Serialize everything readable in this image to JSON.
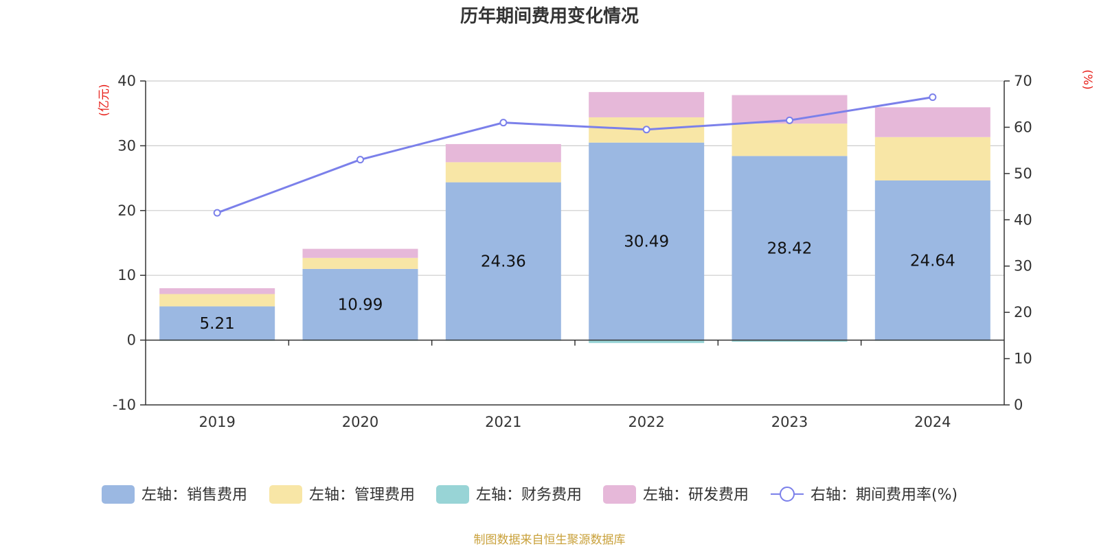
{
  "chart_data": {
    "type": "bar",
    "title": "历年期间费用变化情况",
    "categories": [
      "2019",
      "2020",
      "2021",
      "2022",
      "2023",
      "2024"
    ],
    "series": [
      {
        "name": "左轴：销售费用",
        "type": "bar",
        "axis": "left",
        "color": "#9bb8e2",
        "values": [
          5.21,
          10.99,
          24.36,
          30.49,
          28.42,
          24.64
        ]
      },
      {
        "name": "左轴：管理费用",
        "type": "bar",
        "axis": "left",
        "color": "#f8e6a6",
        "values": [
          1.9,
          1.7,
          3.1,
          3.9,
          5.0,
          6.7
        ]
      },
      {
        "name": "左轴：财务费用",
        "type": "bar",
        "axis": "left",
        "color": "#98d4d6",
        "values": [
          -0.1,
          -0.05,
          -0.05,
          -0.45,
          -0.25,
          -0.05
        ]
      },
      {
        "name": "左轴：研发费用",
        "type": "bar",
        "axis": "left",
        "color": "#e6b8d9",
        "values": [
          0.9,
          1.4,
          2.8,
          3.9,
          4.4,
          4.6
        ]
      },
      {
        "name": "右轴：期间费用率(%)",
        "type": "line",
        "axis": "right",
        "color": "#7b80ea",
        "values": [
          41.5,
          53.0,
          61.0,
          59.5,
          61.5,
          66.5
        ]
      }
    ],
    "data_labels": [
      "5.21",
      "10.99",
      "24.36",
      "30.49",
      "28.42",
      "24.64"
    ],
    "left_axis": {
      "unit": "(亿元)",
      "ylim": [
        -10,
        40
      ],
      "ticks": [
        -10,
        0,
        10,
        20,
        30,
        40
      ]
    },
    "right_axis": {
      "unit": "(%)",
      "ylim": [
        0,
        70
      ],
      "ticks": [
        0,
        10,
        20,
        30,
        40,
        50,
        60,
        70
      ]
    },
    "unit_color": "#e8201a",
    "grid": true,
    "legend_position": "bottom"
  },
  "footer": {
    "text": "制图数据来自恒生聚源数据库",
    "color": "#c9a13b"
  }
}
